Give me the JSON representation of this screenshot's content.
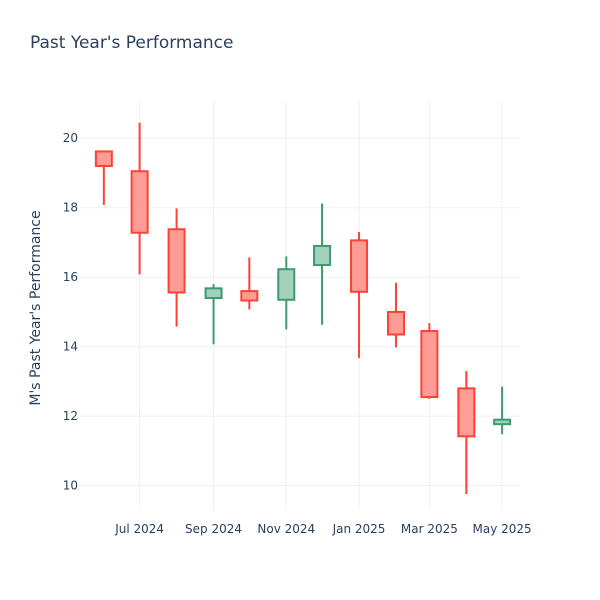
{
  "chart_data": {
    "type": "candlestick",
    "title": "Past Year's Performance",
    "xlabel": "",
    "ylabel": "M's Past Year's Performance",
    "ylim": [
      9.3,
      21.1
    ],
    "yticks": [
      10,
      12,
      14,
      16,
      18,
      20
    ],
    "xticks": [
      {
        "date": "2024-07-01",
        "label": "Jul 2024"
      },
      {
        "date": "2024-09-01",
        "label": "Sep 2024"
      },
      {
        "date": "2024-11-01",
        "label": "Nov 2024"
      },
      {
        "date": "2025-01-01",
        "label": "Jan 2025"
      },
      {
        "date": "2025-03-01",
        "label": "Mar 2025"
      },
      {
        "date": "2025-05-01",
        "label": "May 2025"
      }
    ],
    "xlim": [
      "2024-05-12",
      "2025-05-16"
    ],
    "grid": true,
    "colors": {
      "increasing_line": "#3d9970",
      "increasing_fill": "#a3d0bb",
      "decreasing_line": "#ff4136",
      "decreasing_fill": "#ff9c95"
    },
    "candles": [
      {
        "date": "2024-06-01",
        "open": 19.62,
        "high": 19.62,
        "low": 18.08,
        "close": 19.2
      },
      {
        "date": "2024-07-01",
        "open": 19.05,
        "high": 20.45,
        "low": 16.08,
        "close": 17.28
      },
      {
        "date": "2024-08-01",
        "open": 17.38,
        "high": 17.98,
        "low": 14.58,
        "close": 15.56
      },
      {
        "date": "2024-09-01",
        "open": 15.4,
        "high": 15.8,
        "low": 14.07,
        "close": 15.68
      },
      {
        "date": "2024-10-01",
        "open": 15.6,
        "high": 16.57,
        "low": 15.07,
        "close": 15.33
      },
      {
        "date": "2024-11-01",
        "open": 15.35,
        "high": 16.6,
        "low": 14.5,
        "close": 16.23
      },
      {
        "date": "2024-12-01",
        "open": 16.35,
        "high": 18.12,
        "low": 14.63,
        "close": 16.9
      },
      {
        "date": "2025-01-01",
        "open": 17.06,
        "high": 17.3,
        "low": 13.67,
        "close": 15.58
      },
      {
        "date": "2025-02-01",
        "open": 15.0,
        "high": 15.84,
        "low": 13.98,
        "close": 14.35
      },
      {
        "date": "2025-03-01",
        "open": 14.45,
        "high": 14.68,
        "low": 12.5,
        "close": 12.55
      },
      {
        "date": "2025-04-01",
        "open": 12.8,
        "high": 13.3,
        "low": 9.76,
        "close": 11.42
      },
      {
        "date": "2025-05-01",
        "open": 11.77,
        "high": 12.85,
        "low": 11.48,
        "close": 11.9
      }
    ]
  }
}
